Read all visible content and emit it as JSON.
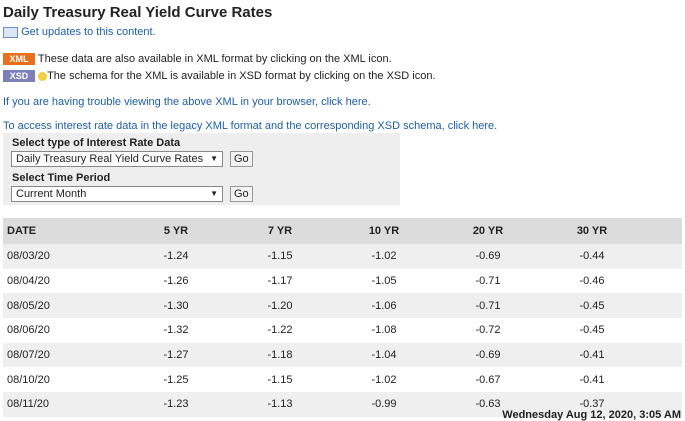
{
  "header": {
    "title": "Daily Treasury Real Yield Curve Rates",
    "updates_link": "Get updates to this content."
  },
  "notes": {
    "xml_badge": "XML",
    "xml_text": "These data are also available in XML format by clicking on the XML icon.",
    "xsd_badge": "XSD",
    "xsd_text": "The schema for the XML is available in XSD format by clicking on the XSD icon."
  },
  "links": [
    "If you are having trouble viewing the above XML in your browser, click here.",
    "To access interest rate data in the legacy XML format and the corresponding XSD schema, click here."
  ],
  "form": {
    "type_label": "Select type of Interest Rate Data",
    "type_value": "Daily Treasury Real Yield Curve Rates",
    "type_button": "Go",
    "period_label": "Select Time Period",
    "period_value": "Current Month",
    "period_button": "Go"
  },
  "table": {
    "columns": [
      "DATE",
      "5 YR",
      "7 YR",
      "10 YR",
      "20 YR",
      "30 YR"
    ],
    "rows": [
      [
        "08/03/20",
        "-1.24",
        "-1.15",
        "-1.02",
        "-0.69",
        "-0.44"
      ],
      [
        "08/04/20",
        "-1.26",
        "-1.17",
        "-1.05",
        "-0.71",
        "-0.46"
      ],
      [
        "08/05/20",
        "-1.30",
        "-1.20",
        "-1.06",
        "-0.71",
        "-0.45"
      ],
      [
        "08/06/20",
        "-1.32",
        "-1.22",
        "-1.08",
        "-0.72",
        "-0.45"
      ],
      [
        "08/07/20",
        "-1.27",
        "-1.18",
        "-1.04",
        "-0.69",
        "-0.41"
      ],
      [
        "08/10/20",
        "-1.25",
        "-1.15",
        "-1.02",
        "-0.67",
        "-0.41"
      ],
      [
        "08/11/20",
        "-1.23",
        "-1.13",
        "-0.99",
        "-0.63",
        "-0.37"
      ]
    ]
  },
  "footer": {
    "timestamp": "Wednesday Aug 12, 2020, 3:05 AM"
  }
}
